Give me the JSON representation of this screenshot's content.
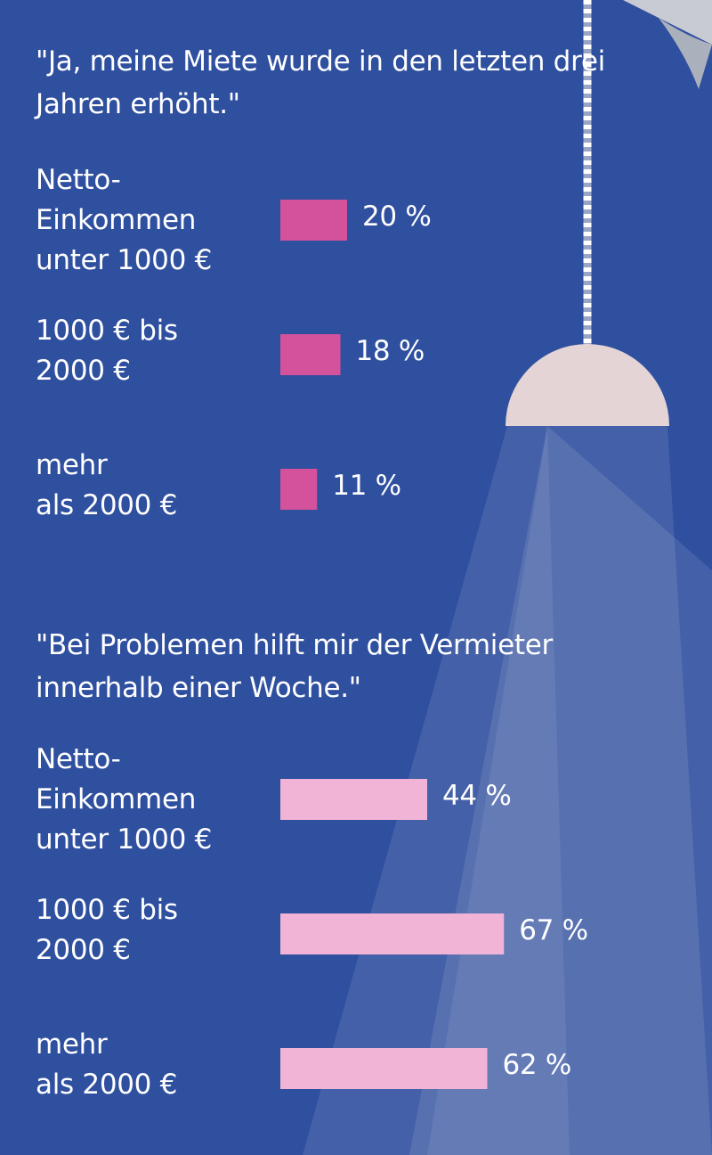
{
  "chart_data": [
    {
      "type": "bar",
      "orientation": "horizontal",
      "title": "\"Ja, meine Miete wurde in den letzten drei Jahren erhöht.\"",
      "categories": [
        "Netto-\nEinkommen\nunter 1000 €",
        "1000 € bis\n2000 €",
        "mehr\nals 2000 €"
      ],
      "values": [
        20,
        18,
        11
      ],
      "value_labels": [
        "20 %",
        "18 %",
        "11 %"
      ],
      "color": "#d4519b"
    },
    {
      "type": "bar",
      "orientation": "horizontal",
      "title": "\"Bei Problemen hilft mir der Vermieter innerhalb einer Woche.\"",
      "categories": [
        "Netto-\nEinkommen\nunter 1000 €",
        "1000 € bis\n2000 €",
        "mehr\nals 2000 €"
      ],
      "values": [
        44,
        67,
        62
      ],
      "value_labels": [
        "44 %",
        "67 %",
        "62 %"
      ],
      "color": "#f1b4d7"
    }
  ]
}
